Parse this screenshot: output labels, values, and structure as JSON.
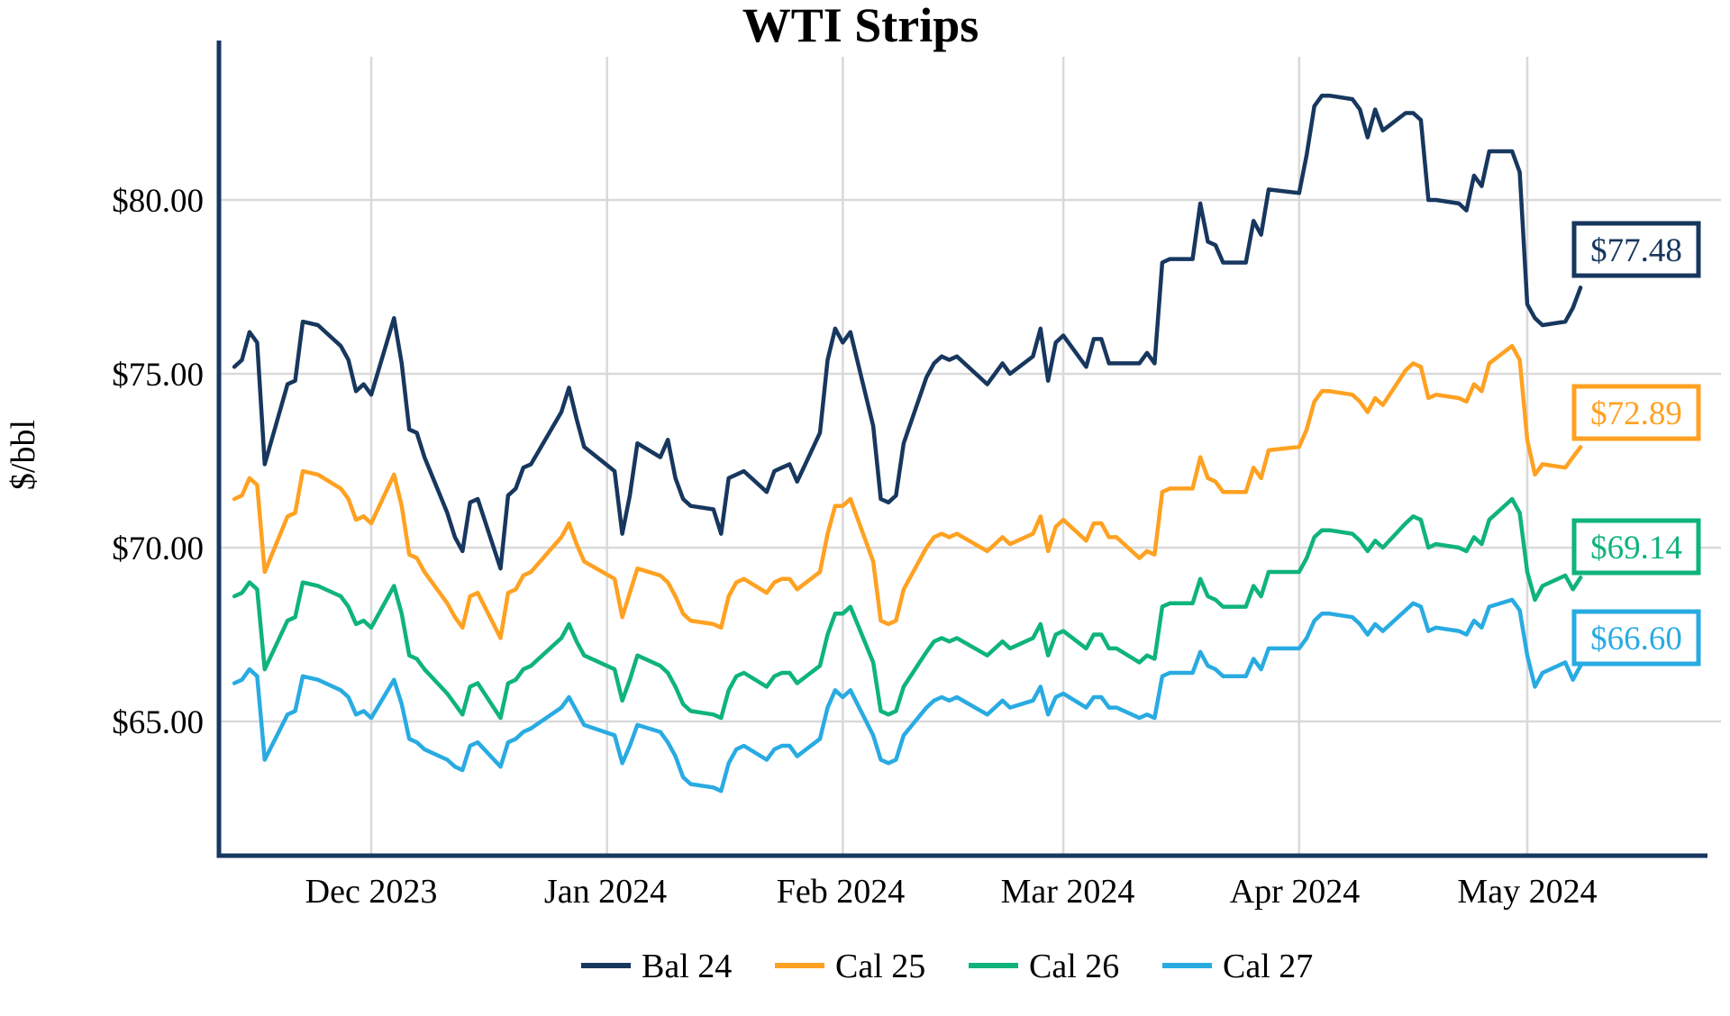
{
  "title": "WTI Strips",
  "y_axis": {
    "label": "$/bbl",
    "ticks": [
      "$80.00",
      "$75.00",
      "$70.00",
      "$65.00"
    ]
  },
  "x_axis": {
    "ticks": [
      "Dec 2023",
      "Jan 2024",
      "Feb 2024",
      "Mar 2024",
      "Apr 2024",
      "May 2024"
    ]
  },
  "colors": {
    "grid": "#d9d9d9",
    "axis": "#17375e",
    "background": "#ffffff"
  },
  "chart_data": {
    "type": "line",
    "title": "WTI Strips",
    "ylabel": "$/bbl",
    "grid": true,
    "legend_position": "bottom",
    "ylim": [
      61.0,
      84.5
    ],
    "y_ticks": [
      80,
      75,
      70,
      65
    ],
    "x_tick_dates": [
      "2023-12-01",
      "2024-01-01",
      "2024-02-01",
      "2024-03-01",
      "2024-04-01",
      "2024-05-01"
    ],
    "x": [
      "2023-11-13",
      "2023-11-14",
      "2023-11-15",
      "2023-11-16",
      "2023-11-17",
      "2023-11-20",
      "2023-11-21",
      "2023-11-22",
      "2023-11-24",
      "2023-11-27",
      "2023-11-28",
      "2023-11-29",
      "2023-11-30",
      "2023-12-01",
      "2023-12-04",
      "2023-12-05",
      "2023-12-06",
      "2023-12-07",
      "2023-12-08",
      "2023-12-11",
      "2023-12-12",
      "2023-12-13",
      "2023-12-14",
      "2023-12-15",
      "2023-12-18",
      "2023-12-19",
      "2023-12-20",
      "2023-12-21",
      "2023-12-22",
      "2023-12-26",
      "2023-12-27",
      "2023-12-28",
      "2023-12-29",
      "2024-01-02",
      "2024-01-03",
      "2024-01-04",
      "2024-01-05",
      "2024-01-08",
      "2024-01-09",
      "2024-01-10",
      "2024-01-11",
      "2024-01-12",
      "2024-01-15",
      "2024-01-16",
      "2024-01-17",
      "2024-01-18",
      "2024-01-19",
      "2024-01-22",
      "2024-01-23",
      "2024-01-24",
      "2024-01-25",
      "2024-01-26",
      "2024-01-29",
      "2024-01-30",
      "2024-01-31",
      "2024-02-01",
      "2024-02-02",
      "2024-02-05",
      "2024-02-06",
      "2024-02-07",
      "2024-02-08",
      "2024-02-09",
      "2024-02-12",
      "2024-02-13",
      "2024-02-14",
      "2024-02-15",
      "2024-02-16",
      "2024-02-20",
      "2024-02-21",
      "2024-02-22",
      "2024-02-23",
      "2024-02-26",
      "2024-02-27",
      "2024-02-28",
      "2024-02-29",
      "2024-03-01",
      "2024-03-04",
      "2024-03-05",
      "2024-03-06",
      "2024-03-07",
      "2024-03-08",
      "2024-03-11",
      "2024-03-12",
      "2024-03-13",
      "2024-03-14",
      "2024-03-15",
      "2024-03-18",
      "2024-03-19",
      "2024-03-20",
      "2024-03-21",
      "2024-03-22",
      "2024-03-25",
      "2024-03-26",
      "2024-03-27",
      "2024-03-28",
      "2024-04-01",
      "2024-04-02",
      "2024-04-03",
      "2024-04-04",
      "2024-04-05",
      "2024-04-08",
      "2024-04-09",
      "2024-04-10",
      "2024-04-11",
      "2024-04-12",
      "2024-04-15",
      "2024-04-16",
      "2024-04-17",
      "2024-04-18",
      "2024-04-19",
      "2024-04-22",
      "2024-04-23",
      "2024-04-24",
      "2024-04-25",
      "2024-04-26",
      "2024-04-29",
      "2024-04-30",
      "2024-05-01",
      "2024-05-02",
      "2024-05-03",
      "2024-05-06",
      "2024-05-07",
      "2024-05-08"
    ],
    "series": [
      {
        "name": "Bal 24",
        "color": "#17375e",
        "end_label": "$77.48",
        "end_value": 77.48,
        "values": [
          75.2,
          75.4,
          76.2,
          75.9,
          72.4,
          74.7,
          74.8,
          76.5,
          76.4,
          75.8,
          75.4,
          74.5,
          74.7,
          74.4,
          76.6,
          75.3,
          73.4,
          73.3,
          72.6,
          71.0,
          70.3,
          69.9,
          71.3,
          71.4,
          69.4,
          71.5,
          71.7,
          72.3,
          72.4,
          73.9,
          74.6,
          73.7,
          72.9,
          72.2,
          70.4,
          71.5,
          73.0,
          72.6,
          73.1,
          72.0,
          71.4,
          71.2,
          71.1,
          70.4,
          72.0,
          72.1,
          72.2,
          71.6,
          72.2,
          72.3,
          72.4,
          71.9,
          73.3,
          75.4,
          76.3,
          75.9,
          76.2,
          73.5,
          71.4,
          71.3,
          71.5,
          73.0,
          74.9,
          75.3,
          75.5,
          75.4,
          75.5,
          74.7,
          75.0,
          75.3,
          75.0,
          75.5,
          76.3,
          74.8,
          75.9,
          76.1,
          75.2,
          76.0,
          76.0,
          75.3,
          75.3,
          75.3,
          75.6,
          75.3,
          78.2,
          78.3,
          78.3,
          79.9,
          78.8,
          78.7,
          78.2,
          78.2,
          79.4,
          79.0,
          80.3,
          80.2,
          81.3,
          82.7,
          83.0,
          83.0,
          82.9,
          82.6,
          81.8,
          82.6,
          82.0,
          82.5,
          82.5,
          82.3,
          80.0,
          80.0,
          79.9,
          79.7,
          80.7,
          80.4,
          81.4,
          81.4,
          80.8,
          77.0,
          76.6,
          76.4,
          76.5,
          76.9,
          77.48
        ]
      },
      {
        "name": "Cal 25",
        "color": "#ffa121",
        "end_label": "$72.89",
        "end_value": 72.89,
        "values": [
          71.4,
          71.5,
          72.0,
          71.8,
          69.3,
          70.9,
          71.0,
          72.2,
          72.1,
          71.7,
          71.4,
          70.8,
          70.9,
          70.7,
          72.1,
          71.2,
          69.8,
          69.7,
          69.3,
          68.4,
          68.0,
          67.7,
          68.6,
          68.7,
          67.4,
          68.7,
          68.8,
          69.2,
          69.3,
          70.3,
          70.7,
          70.1,
          69.6,
          69.1,
          68.0,
          68.7,
          69.4,
          69.2,
          69.0,
          68.6,
          68.1,
          67.9,
          67.8,
          67.7,
          68.6,
          69.0,
          69.1,
          68.7,
          69.0,
          69.1,
          69.1,
          68.8,
          69.3,
          70.4,
          71.2,
          71.2,
          71.4,
          69.6,
          67.9,
          67.8,
          67.9,
          68.8,
          70.0,
          70.3,
          70.4,
          70.3,
          70.4,
          69.9,
          70.1,
          70.3,
          70.1,
          70.4,
          70.9,
          69.9,
          70.6,
          70.8,
          70.2,
          70.7,
          70.7,
          70.3,
          70.3,
          69.7,
          69.9,
          69.8,
          71.6,
          71.7,
          71.7,
          72.6,
          72.0,
          71.9,
          71.6,
          71.6,
          72.3,
          72.0,
          72.8,
          72.9,
          73.4,
          74.2,
          74.5,
          74.5,
          74.4,
          74.2,
          73.9,
          74.3,
          74.1,
          75.1,
          75.3,
          75.2,
          74.3,
          74.4,
          74.3,
          74.2,
          74.7,
          74.5,
          75.3,
          75.8,
          75.4,
          73.1,
          72.1,
          72.4,
          72.3,
          72.6,
          72.89
        ]
      },
      {
        "name": "Cal 26",
        "color": "#0fb37d",
        "end_label": "$69.14",
        "end_value": 69.14,
        "values": [
          68.6,
          68.7,
          69.0,
          68.8,
          66.5,
          67.9,
          68.0,
          69.0,
          68.9,
          68.6,
          68.3,
          67.8,
          67.9,
          67.7,
          68.9,
          68.1,
          66.9,
          66.8,
          66.5,
          65.8,
          65.5,
          65.2,
          66.0,
          66.1,
          65.1,
          66.1,
          66.2,
          66.5,
          66.6,
          67.4,
          67.8,
          67.3,
          66.9,
          66.5,
          65.6,
          66.2,
          66.9,
          66.6,
          66.4,
          66.0,
          65.5,
          65.3,
          65.2,
          65.1,
          65.9,
          66.3,
          66.4,
          66.0,
          66.3,
          66.4,
          66.4,
          66.1,
          66.6,
          67.5,
          68.1,
          68.1,
          68.3,
          66.7,
          65.3,
          65.2,
          65.3,
          66.0,
          67.0,
          67.3,
          67.4,
          67.3,
          67.4,
          66.9,
          67.1,
          67.3,
          67.1,
          67.4,
          67.8,
          66.9,
          67.5,
          67.6,
          67.1,
          67.5,
          67.5,
          67.1,
          67.1,
          66.7,
          66.9,
          66.8,
          68.3,
          68.4,
          68.4,
          69.1,
          68.6,
          68.5,
          68.3,
          68.3,
          68.9,
          68.6,
          69.3,
          69.3,
          69.7,
          70.3,
          70.5,
          70.5,
          70.4,
          70.2,
          69.9,
          70.2,
          70.0,
          70.7,
          70.9,
          70.8,
          70.0,
          70.1,
          70.0,
          69.9,
          70.3,
          70.1,
          70.8,
          71.4,
          71.0,
          69.3,
          68.5,
          68.9,
          69.2,
          68.8,
          69.14
        ]
      },
      {
        "name": "Cal 27",
        "color": "#29abe2",
        "end_label": "$66.60",
        "end_value": 66.6,
        "values": [
          66.1,
          66.2,
          66.5,
          66.3,
          63.9,
          65.2,
          65.3,
          66.3,
          66.2,
          65.9,
          65.7,
          65.2,
          65.3,
          65.1,
          66.2,
          65.5,
          64.5,
          64.4,
          64.2,
          63.9,
          63.7,
          63.6,
          64.3,
          64.4,
          63.7,
          64.4,
          64.5,
          64.7,
          64.8,
          65.4,
          65.7,
          65.3,
          64.9,
          64.6,
          63.8,
          64.3,
          64.9,
          64.7,
          64.4,
          64.0,
          63.4,
          63.2,
          63.1,
          63.0,
          63.8,
          64.2,
          64.3,
          63.9,
          64.2,
          64.3,
          64.3,
          64.0,
          64.5,
          65.4,
          65.9,
          65.7,
          65.9,
          64.6,
          63.9,
          63.8,
          63.9,
          64.6,
          65.4,
          65.6,
          65.7,
          65.6,
          65.7,
          65.2,
          65.4,
          65.6,
          65.4,
          65.6,
          66.0,
          65.2,
          65.7,
          65.8,
          65.4,
          65.7,
          65.7,
          65.4,
          65.4,
          65.1,
          65.2,
          65.1,
          66.3,
          66.4,
          66.4,
          67.0,
          66.6,
          66.5,
          66.3,
          66.3,
          66.8,
          66.5,
          67.1,
          67.1,
          67.4,
          67.9,
          68.1,
          68.1,
          68.0,
          67.8,
          67.5,
          67.8,
          67.6,
          68.2,
          68.4,
          68.3,
          67.6,
          67.7,
          67.6,
          67.5,
          67.9,
          67.7,
          68.3,
          68.5,
          68.2,
          66.9,
          66.0,
          66.4,
          66.7,
          66.2,
          66.6
        ]
      }
    ]
  }
}
